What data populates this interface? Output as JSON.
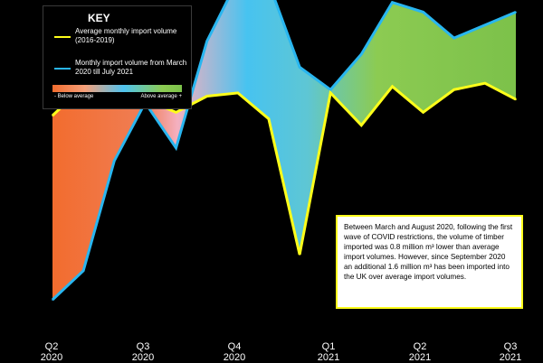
{
  "key": {
    "title": "KEY",
    "line1_label": "Average monthly import volume (2016-2019)",
    "line2_label": "Monthly import volume from March 2020 till July 2021",
    "gradient_left": "- Below average",
    "gradient_right": "Above average +",
    "line1_color": "#ffff1a",
    "line2_color": "#29b6f0"
  },
  "annotation": "Between March and August 2020, following the first wave of COVID restrictions, the volume of timber imported was 0.8 million m³ lower than average import volumes. However, since September 2020 an additional 1.6 million m³ has been imported into the UK over average import volumes.",
  "chart_data": {
    "type": "area",
    "title": "",
    "xlabel": "",
    "ylabel": "",
    "x_tick_labels": [
      {
        "quarter": "Q2",
        "year": "2020"
      },
      {
        "quarter": "Q3",
        "year": "2020"
      },
      {
        "quarter": "Q4",
        "year": "2020"
      },
      {
        "quarter": "Q1",
        "year": "2021"
      },
      {
        "quarter": "Q2",
        "year": "2021"
      },
      {
        "quarter": "Q3",
        "year": "2021"
      }
    ],
    "x": [
      0,
      1,
      2,
      3,
      4,
      5,
      6,
      7,
      8,
      9,
      10,
      11,
      12,
      13,
      14,
      15
    ],
    "ylim": [
      0,
      100
    ],
    "series": [
      {
        "name": "Average monthly import volume (2016-2019)",
        "values": [
          69,
          78,
          81,
          74,
          70,
          75,
          76,
          68,
          26,
          76,
          66,
          78,
          70,
          77,
          79,
          74
        ],
        "color": "#ffff1a"
      },
      {
        "name": "Monthly import volume from March 2020 till July 2021",
        "values": [
          12,
          21,
          55,
          73,
          59,
          92,
          111,
          110,
          84,
          77,
          88,
          104,
          101,
          93,
          97,
          101
        ],
        "color": "#29b6f0"
      }
    ],
    "fill_gradient": [
      "#f26c2e",
      "#f5a07a",
      "#4fc3ef",
      "#8ccb52",
      "#7cc14a"
    ],
    "grid": false,
    "legend_position": "top-left"
  }
}
